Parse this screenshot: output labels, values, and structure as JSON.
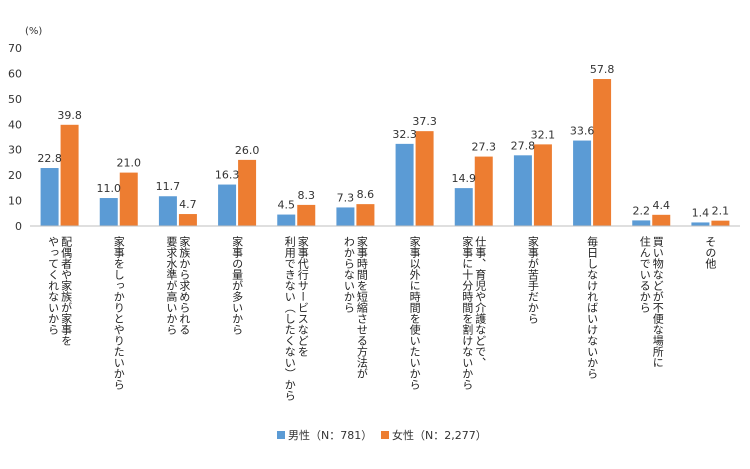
{
  "chart_data": {
    "type": "bar",
    "unit": "(%)",
    "ylim": [
      0,
      70
    ],
    "yticks": [
      0,
      10,
      20,
      30,
      40,
      50,
      60,
      70
    ],
    "grid": false,
    "legend_position": "bottom",
    "categories": [
      [
        "配偶者や家族が家事を",
        "やってくれないから"
      ],
      [
        "家事をしっかりとやりたいから"
      ],
      [
        "家族から求められる",
        "要求水準が高いから"
      ],
      [
        "家事の量が多いから"
      ],
      [
        "家事代行サービスなどを",
        "利用できない（したくない）から"
      ],
      [
        "家事時間を短縮させる方法が",
        "わからないから"
      ],
      [
        "家事以外に時間を使いたいから"
      ],
      [
        "仕事、育児や介護などで、",
        "家事に十分時間を割けないから"
      ],
      [
        "家事が苦手だから"
      ],
      [
        "毎日しなければいけないから"
      ],
      [
        "買い物などが不便な場所に",
        "住んでいるから"
      ],
      [
        "その他"
      ]
    ],
    "series": [
      {
        "name": "男性（N：781）",
        "color": "#5b9bd5",
        "values": [
          22.8,
          11.0,
          11.7,
          16.3,
          4.5,
          7.3,
          32.3,
          14.9,
          27.8,
          33.6,
          2.2,
          1.4
        ]
      },
      {
        "name": "女性（N：2,277）",
        "color": "#ed7d31",
        "values": [
          39.8,
          21.0,
          4.7,
          26.0,
          8.3,
          8.6,
          37.3,
          27.3,
          32.1,
          57.8,
          4.4,
          2.1
        ]
      }
    ]
  }
}
